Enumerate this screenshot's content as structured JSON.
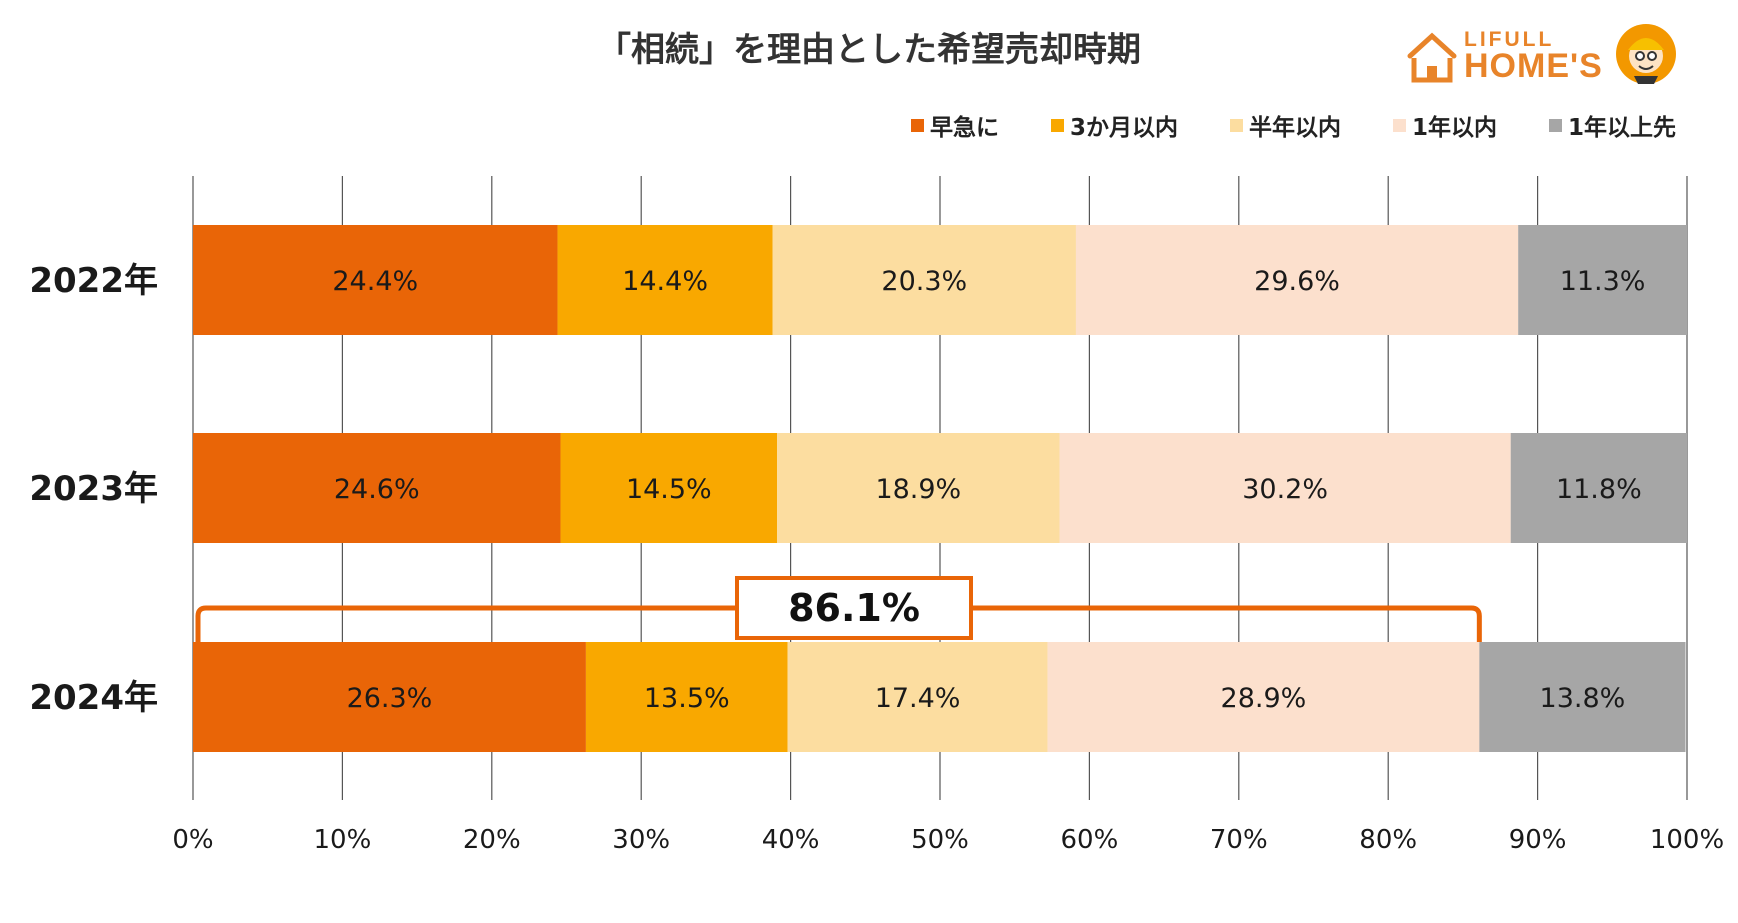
{
  "chart_data": {
    "type": "bar",
    "orientation": "horizontal",
    "stacked": true,
    "title": "「相続」を理由とした希望売却時期",
    "categories": [
      "2022年",
      "2023年",
      "2024年"
    ],
    "series": [
      {
        "name": "早急に",
        "color": "#e96507",
        "values": [
          24.4,
          24.6,
          26.3
        ]
      },
      {
        "name": "3か月以内",
        "color": "#f9a800",
        "values": [
          14.4,
          14.5,
          13.5
        ]
      },
      {
        "name": "半年以内",
        "color": "#fcdda0",
        "values": [
          20.3,
          18.9,
          17.4
        ]
      },
      {
        "name": "1年以内",
        "color": "#fce0cd",
        "values": [
          29.6,
          30.2,
          28.9
        ]
      },
      {
        "name": "1年以上先",
        "color": "#a6a6a6",
        "values": [
          11.3,
          11.8,
          13.8
        ]
      }
    ],
    "value_suffix": "%",
    "xlim": [
      0,
      100
    ],
    "x_ticks": [
      0,
      10,
      20,
      30,
      40,
      50,
      60,
      70,
      80,
      90,
      100
    ],
    "x_tick_labels": [
      "0%",
      "10%",
      "20%",
      "30%",
      "40%",
      "50%",
      "60%",
      "70%",
      "80%",
      "90%",
      "100%"
    ],
    "grid": "vertical",
    "legend_position": "top-right",
    "annotation": {
      "category": "2024年",
      "from": 0,
      "to": 86.1,
      "text": "86.1%",
      "color": "#e96507"
    }
  },
  "logo": {
    "line1": "LIFULL",
    "line2": "HOME'S",
    "accent": "#e8842a"
  }
}
